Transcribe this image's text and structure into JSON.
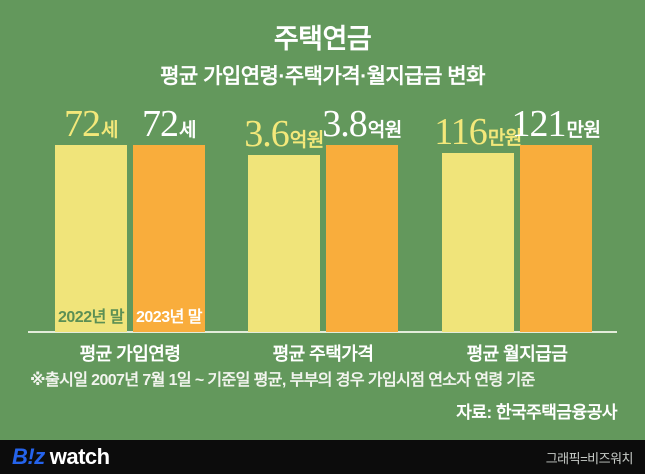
{
  "background_color": "#63985c",
  "header": {
    "title": "주택연금",
    "subtitle": "평균 가입연령·주택가격·월지급금 변화"
  },
  "chart_data": {
    "type": "bar",
    "title": "주택연금",
    "subtitle": "평균 가입연령·주택가격·월지급금 변화",
    "categories": [
      "평균 가입연령",
      "평균 주택가격",
      "평균 월지급금"
    ],
    "units": [
      "세",
      "억원",
      "만원"
    ],
    "series": [
      {
        "name": "2022년 말",
        "values": [
          72,
          3.6,
          116
        ],
        "display": [
          {
            "num": "72",
            "unit": "세"
          },
          {
            "num": "3.6",
            "unit": "억원"
          },
          {
            "num": "116",
            "unit": "만원"
          }
        ],
        "color": "#f0e47a",
        "label_color": "#f3e87a",
        "year_label_color": "#5b8f54"
      },
      {
        "name": "2023년 말",
        "values": [
          72,
          3.8,
          121
        ],
        "display": [
          {
            "num": "72",
            "unit": "세"
          },
          {
            "num": "3.8",
            "unit": "억원"
          },
          {
            "num": "121",
            "unit": "만원"
          }
        ],
        "color": "#f9ad3c",
        "label_color": "#ffffff",
        "year_label_color": "#ffffff"
      }
    ],
    "grid": false,
    "legend_position": "inside-first-group-bars",
    "baseline_color": "#e3ecda"
  },
  "footnote": "※출시일 2007년 7월 1일 ~ 기준일 평균, 부부의 경우 가입시점 연소자 연령 기준",
  "source": "자료: 한국주택금융공사",
  "footer": {
    "logo_biz": "B!z",
    "logo_watch": "watch",
    "logo_blue": "#2563eb",
    "credit": "그래픽=비즈워치"
  }
}
